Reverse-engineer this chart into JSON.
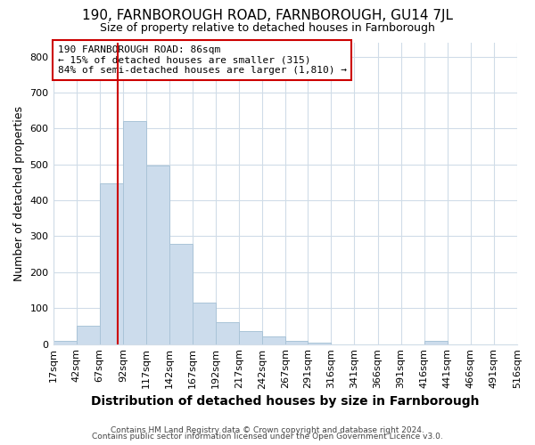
{
  "title": "190, FARNBOROUGH ROAD, FARNBOROUGH, GU14 7JL",
  "subtitle": "Size of property relative to detached houses in Farnborough",
  "xlabel": "Distribution of detached houses by size in Farnborough",
  "ylabel": "Number of detached properties",
  "footer_line1": "Contains HM Land Registry data © Crown copyright and database right 2024.",
  "footer_line2": "Contains public sector information licensed under the Open Government Licence v3.0.",
  "annotation_line1": "190 FARNBOROUGH ROAD: 86sqm",
  "annotation_line2": "← 15% of detached houses are smaller (315)",
  "annotation_line3": "84% of semi-detached houses are larger (1,810) →",
  "bar_color": "#ccdcec",
  "bar_edge_color": "#aac4d8",
  "vline_color": "#cc0000",
  "annotation_box_edgecolor": "#cc0000",
  "annotation_box_facecolor": "#ffffff",
  "bin_edges": [
    17,
    42,
    67,
    92,
    117,
    142,
    167,
    192,
    217,
    242,
    267,
    291,
    316,
    341,
    366,
    391,
    416,
    441,
    466,
    491,
    516
  ],
  "bar_heights": [
    10,
    50,
    447,
    620,
    498,
    278,
    115,
    60,
    35,
    22,
    10,
    5,
    0,
    0,
    0,
    0,
    8,
    0,
    0,
    0
  ],
  "vline_x": 86,
  "ylim": [
    0,
    840
  ],
  "xlim": [
    17,
    516
  ],
  "yticks": [
    0,
    100,
    200,
    300,
    400,
    500,
    600,
    700,
    800
  ],
  "background_color": "#ffffff",
  "grid_color": "#d0dce8",
  "title_fontsize": 11,
  "subtitle_fontsize": 9,
  "ylabel_fontsize": 9,
  "xlabel_fontsize": 10,
  "tick_fontsize": 8,
  "annotation_fontsize": 8
}
